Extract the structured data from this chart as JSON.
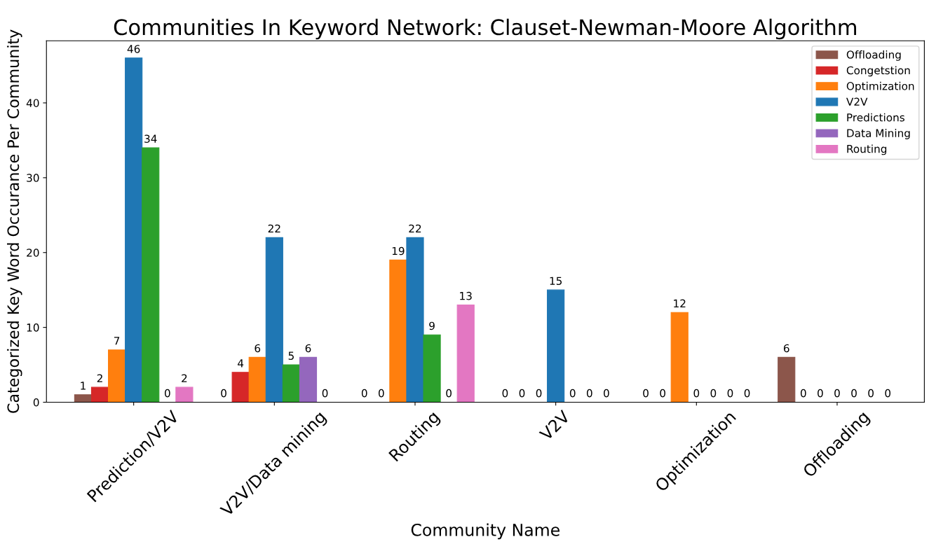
{
  "chart_data": {
    "type": "bar",
    "title": "Communities In Keyword Network: Clauset-Newman-Moore Algorithm",
    "xlabel": "Community Name",
    "ylabel": "Categorized Key Word Occurance Per Community",
    "categories": [
      "Prediction/V2V",
      "V2V/Data mining",
      "Routing",
      "V2V",
      "Optimization",
      "Offloading"
    ],
    "series": [
      {
        "name": "Offloading",
        "color": "#8c564b",
        "values": [
          1,
          0,
          0,
          0,
          0,
          6
        ]
      },
      {
        "name": "Congetstion",
        "color": "#d62728",
        "values": [
          2,
          4,
          0,
          0,
          0,
          0
        ]
      },
      {
        "name": "Optimization",
        "color": "#ff7f0e",
        "values": [
          7,
          6,
          19,
          0,
          12,
          0
        ]
      },
      {
        "name": "V2V",
        "color": "#1f77b4",
        "values": [
          46,
          22,
          22,
          15,
          0,
          0
        ]
      },
      {
        "name": "Predictions",
        "color": "#2ca02c",
        "values": [
          34,
          5,
          9,
          0,
          0,
          0
        ]
      },
      {
        "name": "Data Mining",
        "color": "#9467bd",
        "values": [
          0,
          6,
          0,
          0,
          0,
          0
        ]
      },
      {
        "name": "Routing",
        "color": "#e377c2",
        "values": [
          2,
          0,
          13,
          0,
          0,
          0
        ]
      }
    ],
    "ylim": [
      0,
      48.3
    ],
    "yticks": [
      0,
      10,
      20,
      30,
      40
    ],
    "data_labels": true,
    "legend": "top right",
    "grid": false
  }
}
